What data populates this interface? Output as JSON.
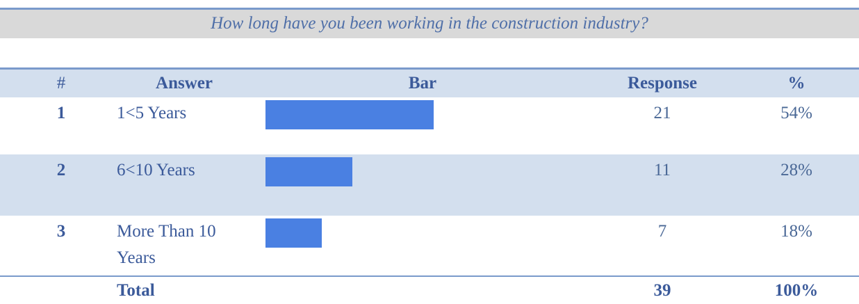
{
  "title": "How long have you been working in the construction industry?",
  "table": {
    "header": {
      "number": "#",
      "answer": "Answer",
      "bar": "Bar",
      "response": "Response",
      "percent": "%"
    },
    "rows": [
      {
        "number": "1",
        "answer": "1<5 Years",
        "response": 21,
        "percent": 54,
        "percent_label": "54%"
      },
      {
        "number": "2",
        "answer": "6<10 Years",
        "response": 11,
        "percent": 28,
        "percent_label": "28%"
      },
      {
        "number": "3",
        "answer": "More Than 10 Years",
        "response": 7,
        "percent": 18,
        "percent_label": "18%"
      }
    ],
    "total": {
      "label": "Total",
      "response": 39,
      "percent": 100,
      "percent_label": "100%"
    }
  },
  "bar_color": "#4a80e2"
}
